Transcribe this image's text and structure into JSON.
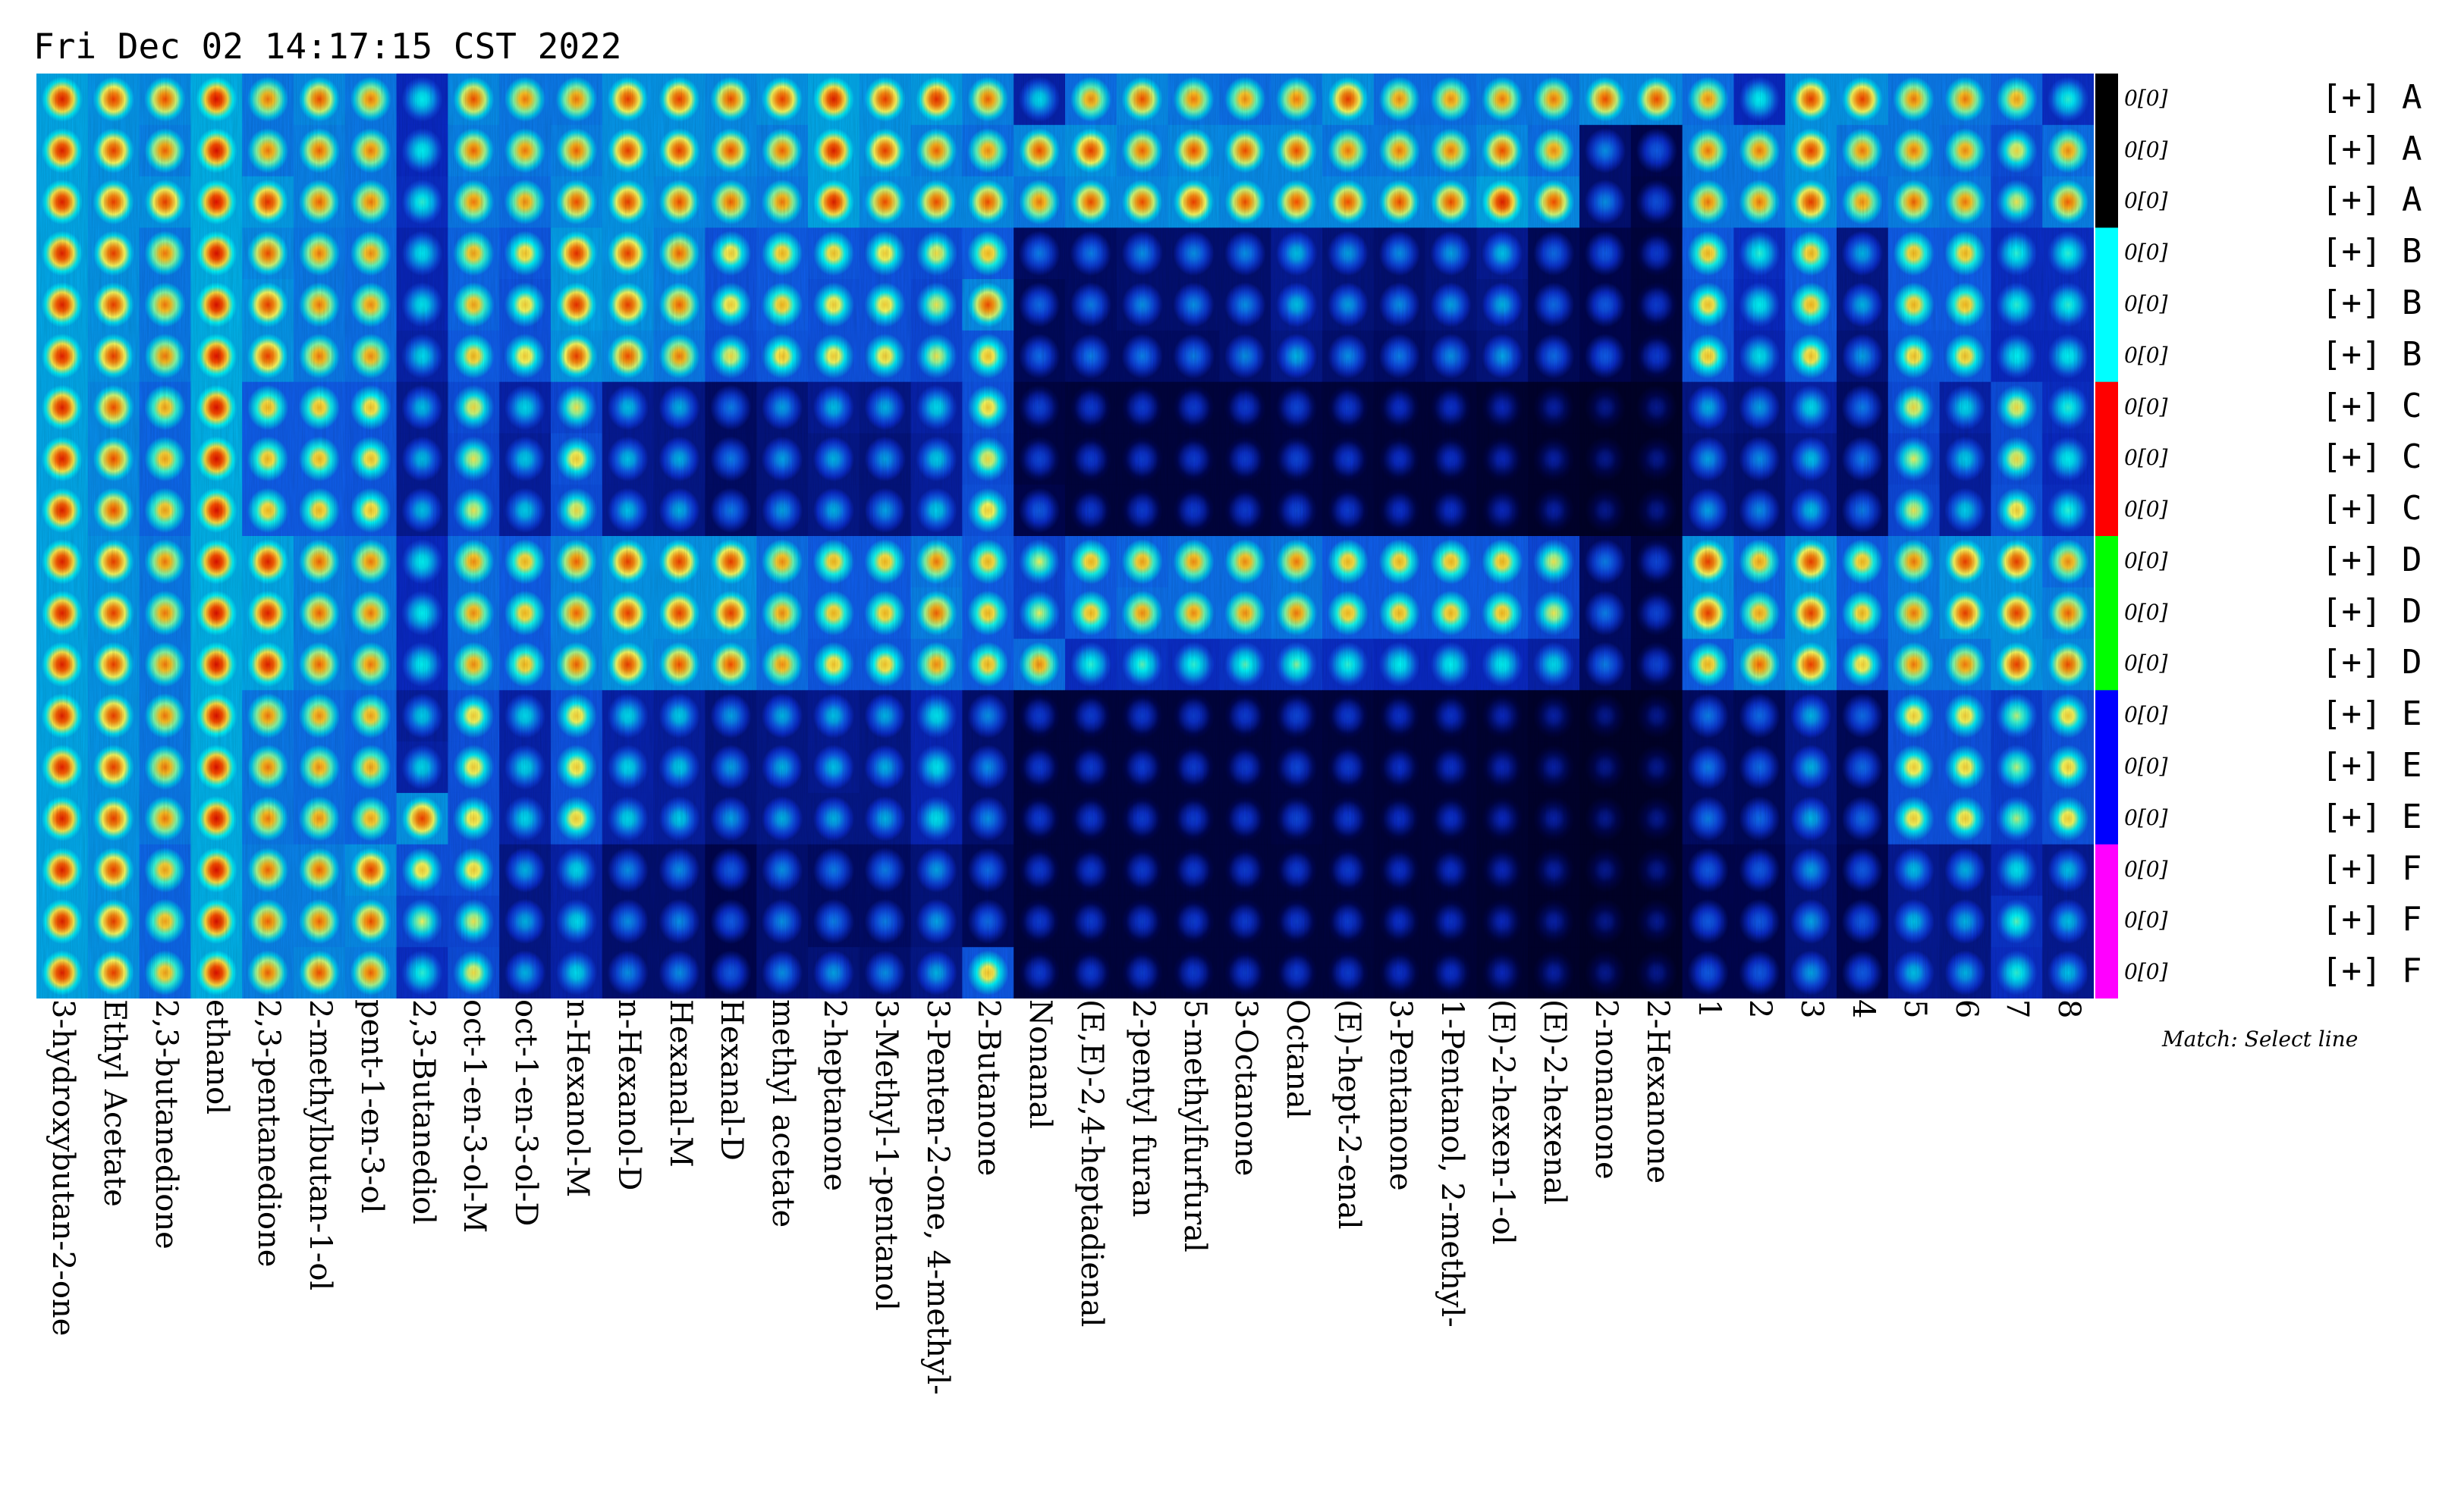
{
  "header": {
    "timestamp": "Fri Dec 02 14:17:15 CST 2022"
  },
  "legend": {
    "hint": "Match: Select line"
  },
  "colors": {
    "colormap": [
      "#000000",
      "#000018",
      "#000550",
      "#0a2ac8",
      "#1060f0",
      "#00c0f0",
      "#00ffff",
      "#ffff60",
      "#ffc020",
      "#ff5000",
      "#e00000"
    ],
    "groups": {
      "A": "#000000",
      "B": "#00ffff",
      "C": "#ff0000",
      "D": "#00ff00",
      "E": "#0000ff",
      "F": "#ff00ff"
    }
  },
  "chart_data": {
    "type": "heatmap",
    "title": "",
    "columns": [
      "3-hydroxybutan-2-one",
      "Ethyl Acetate",
      "2,3-butanedione",
      "ethanol",
      "2,3-pentanedione",
      "2-methylbutan-1-ol",
      "pent-1-en-3-ol",
      "2,3-Butanediol",
      "oct-1-en-3-ol-M",
      "oct-1-en-3-ol-D",
      "n-Hexanol-M",
      "n-Hexanol-D",
      "Hexanal-M",
      "Hexanal-D",
      "methyl acetate",
      "2-heptanone",
      "3-Methyl-1-pentanol",
      "3-Penten-2-one, 4-methyl-",
      "2-Butanone",
      "Nonanal",
      "(E,E)-2,4-heptadienal",
      "2-pentyl furan",
      "5-methylfurfural",
      "3-Octanone",
      "Octanal",
      "(E)-hept-2-enal",
      "3-Pentanone",
      "1-Pentanol, 2-methyl-",
      "(E)-2-hexen-1-ol",
      "(E)-2-hexenal",
      "2-nonanone",
      "2-Hexanone",
      "1",
      "2",
      "3",
      "4",
      "5",
      "6",
      "7",
      "8"
    ],
    "rows": [
      {
        "group": "A",
        "label": "[+] A",
        "value": "0[0]"
      },
      {
        "group": "A",
        "label": "[+] A",
        "value": "0[0]"
      },
      {
        "group": "A",
        "label": "[+] A",
        "value": "0[0]"
      },
      {
        "group": "B",
        "label": "[+] B",
        "value": "0[0]"
      },
      {
        "group": "B",
        "label": "[+] B",
        "value": "0[0]"
      },
      {
        "group": "B",
        "label": "[+] B",
        "value": "0[0]"
      },
      {
        "group": "C",
        "label": "[+] C",
        "value": "0[0]"
      },
      {
        "group": "C",
        "label": "[+] C",
        "value": "0[0]"
      },
      {
        "group": "C",
        "label": "[+] C",
        "value": "0[0]"
      },
      {
        "group": "D",
        "label": "[+] D",
        "value": "0[0]"
      },
      {
        "group": "D",
        "label": "[+] D",
        "value": "0[0]"
      },
      {
        "group": "D",
        "label": "[+] D",
        "value": "0[0]"
      },
      {
        "group": "E",
        "label": "[+] E",
        "value": "0[0]"
      },
      {
        "group": "E",
        "label": "[+] E",
        "value": "0[0]"
      },
      {
        "group": "E",
        "label": "[+] E",
        "value": "0[0]"
      },
      {
        "group": "F",
        "label": "[+] F",
        "value": "0[0]"
      },
      {
        "group": "F",
        "label": "[+] F",
        "value": "0[0]"
      },
      {
        "group": "F",
        "label": "[+] F",
        "value": "0[0]"
      }
    ],
    "intensity": [
      [
        0.96,
        0.92,
        0.9,
        0.98,
        0.86,
        0.9,
        0.86,
        0.6,
        0.9,
        0.86,
        0.86,
        0.92,
        0.92,
        0.9,
        0.92,
        0.96,
        0.92,
        0.94,
        0.88,
        0.56,
        0.84,
        0.9,
        0.86,
        0.84,
        0.86,
        0.92,
        0.84,
        0.84,
        0.86,
        0.86,
        0.9,
        0.9,
        0.84,
        0.6,
        0.92,
        0.92,
        0.86,
        0.86,
        0.82,
        0.62
      ],
      [
        0.96,
        0.92,
        0.88,
        0.98,
        0.86,
        0.88,
        0.86,
        0.6,
        0.88,
        0.86,
        0.88,
        0.92,
        0.92,
        0.9,
        0.88,
        0.96,
        0.92,
        0.88,
        0.84,
        0.9,
        0.92,
        0.88,
        0.9,
        0.9,
        0.9,
        0.86,
        0.86,
        0.86,
        0.9,
        0.84,
        0.46,
        0.4,
        0.86,
        0.86,
        0.92,
        0.86,
        0.86,
        0.84,
        0.74,
        0.84
      ],
      [
        0.96,
        0.92,
        0.92,
        0.98,
        0.94,
        0.88,
        0.86,
        0.62,
        0.86,
        0.84,
        0.9,
        0.92,
        0.9,
        0.88,
        0.86,
        0.96,
        0.9,
        0.9,
        0.9,
        0.86,
        0.9,
        0.9,
        0.92,
        0.9,
        0.9,
        0.9,
        0.9,
        0.9,
        0.96,
        0.9,
        0.46,
        0.38,
        0.86,
        0.86,
        0.92,
        0.84,
        0.88,
        0.86,
        0.72,
        0.88
      ],
      [
        0.96,
        0.92,
        0.86,
        0.98,
        0.9,
        0.86,
        0.84,
        0.58,
        0.82,
        0.78,
        0.94,
        0.92,
        0.88,
        0.76,
        0.8,
        0.78,
        0.76,
        0.74,
        0.8,
        0.44,
        0.44,
        0.46,
        0.46,
        0.46,
        0.52,
        0.48,
        0.46,
        0.48,
        0.52,
        0.42,
        0.4,
        0.34,
        0.8,
        0.62,
        0.8,
        0.5,
        0.8,
        0.8,
        0.62,
        0.62
      ],
      [
        0.96,
        0.92,
        0.86,
        0.98,
        0.92,
        0.86,
        0.84,
        0.58,
        0.82,
        0.76,
        0.94,
        0.92,
        0.88,
        0.76,
        0.8,
        0.76,
        0.76,
        0.72,
        0.9,
        0.42,
        0.44,
        0.46,
        0.46,
        0.46,
        0.52,
        0.48,
        0.46,
        0.48,
        0.5,
        0.42,
        0.4,
        0.34,
        0.78,
        0.6,
        0.8,
        0.5,
        0.8,
        0.8,
        0.62,
        0.62
      ],
      [
        0.96,
        0.92,
        0.86,
        0.98,
        0.92,
        0.86,
        0.84,
        0.56,
        0.8,
        0.76,
        0.92,
        0.9,
        0.86,
        0.74,
        0.78,
        0.76,
        0.76,
        0.72,
        0.78,
        0.42,
        0.44,
        0.44,
        0.44,
        0.46,
        0.5,
        0.46,
        0.44,
        0.46,
        0.48,
        0.42,
        0.4,
        0.34,
        0.78,
        0.58,
        0.78,
        0.48,
        0.78,
        0.78,
        0.6,
        0.6
      ],
      [
        0.96,
        0.9,
        0.82,
        0.98,
        0.8,
        0.8,
        0.78,
        0.52,
        0.74,
        0.56,
        0.72,
        0.52,
        0.5,
        0.44,
        0.48,
        0.52,
        0.5,
        0.56,
        0.76,
        0.36,
        0.34,
        0.34,
        0.34,
        0.34,
        0.36,
        0.34,
        0.32,
        0.32,
        0.3,
        0.28,
        0.26,
        0.26,
        0.5,
        0.48,
        0.56,
        0.44,
        0.74,
        0.56,
        0.74,
        0.62
      ],
      [
        0.96,
        0.9,
        0.82,
        0.98,
        0.8,
        0.8,
        0.78,
        0.52,
        0.72,
        0.54,
        0.76,
        0.52,
        0.5,
        0.44,
        0.48,
        0.5,
        0.48,
        0.54,
        0.74,
        0.36,
        0.34,
        0.34,
        0.34,
        0.34,
        0.36,
        0.34,
        0.32,
        0.32,
        0.3,
        0.28,
        0.26,
        0.26,
        0.48,
        0.46,
        0.52,
        0.44,
        0.7,
        0.54,
        0.74,
        0.6
      ],
      [
        0.96,
        0.9,
        0.82,
        0.98,
        0.8,
        0.8,
        0.78,
        0.52,
        0.72,
        0.54,
        0.74,
        0.52,
        0.5,
        0.44,
        0.48,
        0.5,
        0.48,
        0.54,
        0.76,
        0.4,
        0.34,
        0.34,
        0.34,
        0.34,
        0.36,
        0.34,
        0.32,
        0.32,
        0.3,
        0.28,
        0.26,
        0.26,
        0.48,
        0.46,
        0.52,
        0.44,
        0.72,
        0.54,
        0.76,
        0.62
      ],
      [
        0.96,
        0.92,
        0.86,
        0.98,
        0.96,
        0.88,
        0.86,
        0.6,
        0.84,
        0.8,
        0.88,
        0.92,
        0.92,
        0.92,
        0.84,
        0.8,
        0.8,
        0.86,
        0.8,
        0.7,
        0.8,
        0.82,
        0.84,
        0.84,
        0.86,
        0.8,
        0.8,
        0.8,
        0.8,
        0.72,
        0.44,
        0.36,
        0.92,
        0.82,
        0.92,
        0.8,
        0.86,
        0.92,
        0.92,
        0.84
      ],
      [
        0.96,
        0.92,
        0.86,
        0.98,
        0.96,
        0.88,
        0.86,
        0.6,
        0.84,
        0.8,
        0.88,
        0.92,
        0.92,
        0.92,
        0.84,
        0.8,
        0.8,
        0.88,
        0.8,
        0.7,
        0.8,
        0.84,
        0.84,
        0.84,
        0.86,
        0.8,
        0.8,
        0.8,
        0.8,
        0.72,
        0.44,
        0.36,
        0.92,
        0.82,
        0.92,
        0.8,
        0.86,
        0.92,
        0.92,
        0.88
      ],
      [
        0.96,
        0.92,
        0.86,
        0.98,
        0.96,
        0.88,
        0.86,
        0.6,
        0.84,
        0.8,
        0.88,
        0.92,
        0.9,
        0.9,
        0.84,
        0.78,
        0.78,
        0.84,
        0.8,
        0.84,
        0.62,
        0.64,
        0.62,
        0.64,
        0.66,
        0.62,
        0.6,
        0.6,
        0.6,
        0.56,
        0.44,
        0.36,
        0.8,
        0.88,
        0.92,
        0.76,
        0.86,
        0.86,
        0.92,
        0.9
      ],
      [
        0.96,
        0.92,
        0.86,
        0.98,
        0.86,
        0.84,
        0.82,
        0.54,
        0.76,
        0.56,
        0.76,
        0.56,
        0.54,
        0.48,
        0.5,
        0.52,
        0.5,
        0.58,
        0.46,
        0.34,
        0.34,
        0.34,
        0.34,
        0.34,
        0.36,
        0.34,
        0.32,
        0.32,
        0.3,
        0.28,
        0.26,
        0.26,
        0.44,
        0.42,
        0.5,
        0.42,
        0.76,
        0.76,
        0.68,
        0.76
      ],
      [
        0.96,
        0.92,
        0.86,
        0.98,
        0.86,
        0.84,
        0.82,
        0.56,
        0.76,
        0.56,
        0.76,
        0.56,
        0.54,
        0.48,
        0.5,
        0.52,
        0.5,
        0.58,
        0.46,
        0.34,
        0.34,
        0.34,
        0.34,
        0.34,
        0.36,
        0.34,
        0.32,
        0.32,
        0.3,
        0.28,
        0.26,
        0.26,
        0.44,
        0.42,
        0.5,
        0.42,
        0.76,
        0.76,
        0.68,
        0.76
      ],
      [
        0.96,
        0.92,
        0.86,
        0.98,
        0.86,
        0.84,
        0.82,
        0.92,
        0.76,
        0.56,
        0.76,
        0.56,
        0.54,
        0.48,
        0.5,
        0.5,
        0.5,
        0.58,
        0.46,
        0.34,
        0.34,
        0.34,
        0.34,
        0.34,
        0.36,
        0.34,
        0.32,
        0.32,
        0.3,
        0.28,
        0.26,
        0.26,
        0.44,
        0.42,
        0.5,
        0.42,
        0.76,
        0.76,
        0.68,
        0.76
      ],
      [
        0.96,
        0.92,
        0.82,
        0.98,
        0.88,
        0.88,
        0.92,
        0.76,
        0.76,
        0.5,
        0.56,
        0.46,
        0.46,
        0.4,
        0.46,
        0.44,
        0.44,
        0.48,
        0.42,
        0.34,
        0.34,
        0.34,
        0.34,
        0.34,
        0.34,
        0.34,
        0.32,
        0.32,
        0.3,
        0.28,
        0.26,
        0.26,
        0.4,
        0.4,
        0.48,
        0.4,
        0.52,
        0.5,
        0.58,
        0.52
      ],
      [
        0.96,
        0.92,
        0.82,
        0.98,
        0.88,
        0.88,
        0.9,
        0.7,
        0.72,
        0.5,
        0.56,
        0.46,
        0.46,
        0.4,
        0.46,
        0.44,
        0.44,
        0.48,
        0.42,
        0.34,
        0.34,
        0.34,
        0.34,
        0.34,
        0.34,
        0.34,
        0.32,
        0.32,
        0.3,
        0.28,
        0.26,
        0.26,
        0.4,
        0.4,
        0.48,
        0.4,
        0.52,
        0.5,
        0.64,
        0.52
      ],
      [
        0.96,
        0.92,
        0.82,
        0.98,
        0.88,
        0.9,
        0.88,
        0.62,
        0.74,
        0.5,
        0.56,
        0.46,
        0.46,
        0.4,
        0.46,
        0.48,
        0.46,
        0.5,
        0.78,
        0.34,
        0.34,
        0.34,
        0.34,
        0.34,
        0.34,
        0.34,
        0.32,
        0.32,
        0.3,
        0.28,
        0.26,
        0.26,
        0.4,
        0.4,
        0.48,
        0.4,
        0.52,
        0.5,
        0.62,
        0.52
      ]
    ],
    "value_range": [
      0,
      1
    ],
    "grid": false,
    "legend_placement": "right"
  }
}
